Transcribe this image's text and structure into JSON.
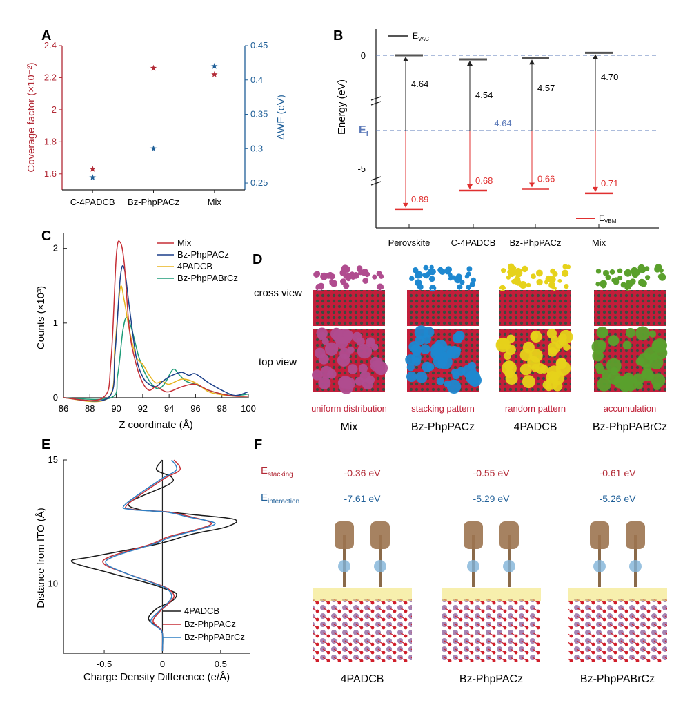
{
  "chart_data": [
    {
      "panel": "A",
      "type": "scatter",
      "categories": [
        "C-4PADCB",
        "Bz-PhpPACz",
        "Mix"
      ],
      "ylabel_left": "Coverage factor (×10⁻²)",
      "ylabel_right": "ΔWF (eV)",
      "ylim_left": [
        1.5,
        2.4
      ],
      "ylim_right": [
        0.24,
        0.45
      ],
      "yticks_left": [
        "1.6",
        "1.8",
        "2",
        "2.2",
        "2.4"
      ],
      "yticks_right": [
        "0.25",
        "0.3",
        "0.35",
        "0.4",
        "0.45"
      ],
      "series": [
        {
          "axis": "left",
          "color": "#b22a36",
          "values": [
            1.63,
            2.26,
            2.22
          ]
        },
        {
          "axis": "right",
          "color": "#1f5f98",
          "values": [
            0.258,
            0.3,
            0.42
          ]
        }
      ]
    },
    {
      "panel": "B",
      "type": "bar",
      "categories": [
        "Perovskite",
        "C-4PADCB",
        "Bz-PhpPACz",
        "Mix"
      ],
      "ylabel": "Energy (eV)",
      "yticks": [
        "0",
        "-5"
      ],
      "ef_label": "E",
      "ef_sub": "f",
      "ef_value": "-4.64",
      "legend": [
        {
          "label": "E",
          "sub": "VAC",
          "color": "#555555"
        },
        {
          "label": "E",
          "sub": "VBM",
          "color": "#e03030"
        }
      ],
      "vac_levels": [
        0,
        -0.1,
        -0.07,
        0.06
      ],
      "wf_labels": [
        "4.64",
        "4.54",
        "4.57",
        "4.70"
      ],
      "vbm_gap_labels": [
        "0.89",
        "0.68",
        "0.66",
        "0.71"
      ],
      "vbm_levels": [
        -5.53,
        -5.32,
        -5.3,
        -5.35
      ]
    },
    {
      "panel": "C",
      "type": "line",
      "xlabel": "Z coordinate (Å)",
      "ylabel": "Counts (×10³)",
      "xlim": [
        86,
        100
      ],
      "ylim": [
        0,
        2.2
      ],
      "xticks": [
        "86",
        "88",
        "90",
        "92",
        "94",
        "96",
        "98",
        "100"
      ],
      "yticks": [
        "0",
        "1",
        "2"
      ],
      "legend_labels": [
        "Mix",
        "Bz-PhpPACz",
        "4PADCB",
        "Bz-PhpPABrCz"
      ],
      "series": [
        {
          "color": "#c62f36",
          "x": [
            86,
            89,
            89.6,
            90,
            90.3,
            90.6,
            91,
            91.5,
            92,
            92.5,
            93,
            93.5,
            94,
            95,
            96,
            97,
            98,
            99,
            100
          ],
          "y": [
            0,
            0,
            0.5,
            1.9,
            2.08,
            1.8,
            0.9,
            0.45,
            0.2,
            0.1,
            0.15,
            0.1,
            0.08,
            0.15,
            0.18,
            0.1,
            0.05,
            0.02,
            0.02
          ]
        },
        {
          "color": "#1b3f8a",
          "x": [
            86,
            89.4,
            89.9,
            90.3,
            90.6,
            91,
            91.5,
            92,
            92.5,
            93,
            93.5,
            94,
            94.5,
            95,
            95.5,
            96,
            97,
            98,
            99,
            100
          ],
          "y": [
            0,
            0,
            0.6,
            1.6,
            1.73,
            1.2,
            0.55,
            0.28,
            0.18,
            0.15,
            0.22,
            0.28,
            0.32,
            0.34,
            0.3,
            0.32,
            0.2,
            0.1,
            0.03,
            0.08
          ]
        },
        {
          "color": "#e8b41e",
          "x": [
            86,
            89.4,
            89.9,
            90.3,
            90.6,
            91,
            91.5,
            92,
            92.5,
            93,
            93.5,
            94,
            95,
            96,
            97,
            98,
            99,
            100
          ],
          "y": [
            0,
            0,
            0.7,
            1.47,
            1.3,
            0.9,
            0.55,
            0.45,
            0.3,
            0.2,
            0.22,
            0.18,
            0.25,
            0.2,
            0.08,
            0.04,
            0.02,
            0.02
          ]
        },
        {
          "color": "#1e9c78",
          "x": [
            86,
            89.6,
            90.1,
            90.5,
            90.8,
            91.2,
            91.7,
            92.2,
            92.7,
            93.2,
            93.7,
            94.3,
            94.8,
            95.3,
            96,
            97,
            98,
            99,
            100
          ],
          "y": [
            0,
            0,
            0.3,
            0.9,
            1.08,
            0.9,
            0.55,
            0.32,
            0.18,
            0.12,
            0.2,
            0.38,
            0.3,
            0.22,
            0.18,
            0.1,
            0.05,
            0.03,
            0.05
          ]
        }
      ]
    },
    {
      "panel": "E",
      "type": "line",
      "xlabel": "Charge Density Difference (e/Å)",
      "ylabel": "Distance from ITO (Å)",
      "xlim": [
        -0.85,
        0.75
      ],
      "ylim": [
        7.2,
        15
      ],
      "xticks": [
        "-0.5",
        "0",
        "0.5"
      ],
      "yticks": [
        "10",
        "15"
      ],
      "legend_labels": [
        "4PADCB",
        "Bz-PhpPACz",
        "Bz-PhpPABrCz"
      ],
      "series": [
        {
          "color": "#1a1a1a",
          "x": [
            0.0,
            -0.05,
            0.08,
            0.05,
            -0.28,
            -0.2,
            0.05,
            0.25,
            0.62,
            0.55,
            0.25,
            -0.05,
            -0.6,
            -0.78,
            -0.5,
            -0.1,
            0.02,
            0.12,
            0.08,
            -0.05,
            -0.12,
            -0.05,
            0.0,
            0.0
          ],
          "y": [
            15,
            14.6,
            14.3,
            14.0,
            13.3,
            13.0,
            12.9,
            12.8,
            12.6,
            12.3,
            12.0,
            11.6,
            11.1,
            10.9,
            10.5,
            10.0,
            9.8,
            9.6,
            9.3,
            9.0,
            8.6,
            8.3,
            8.0,
            7.3
          ]
        },
        {
          "color": "#c62f36",
          "x": [
            0.1,
            0.15,
            0.0,
            -0.3,
            -0.25,
            0.05,
            0.25,
            0.42,
            0.3,
            0.05,
            -0.1,
            -0.45,
            -0.5,
            -0.3,
            -0.05,
            0.05,
            0.1,
            0.05,
            -0.02,
            -0.08,
            -0.02,
            0.0,
            0.0
          ],
          "y": [
            15,
            14.6,
            14.2,
            13.2,
            13.0,
            12.9,
            12.7,
            12.45,
            12.2,
            11.9,
            11.6,
            11.1,
            10.8,
            10.4,
            10.0,
            9.8,
            9.5,
            9.2,
            8.9,
            8.5,
            8.2,
            8.0,
            7.3
          ]
        },
        {
          "color": "#2f7fc4",
          "x": [
            0.08,
            0.12,
            -0.02,
            -0.32,
            -0.27,
            0.03,
            0.22,
            0.45,
            0.32,
            0.08,
            -0.08,
            -0.42,
            -0.48,
            -0.3,
            -0.06,
            0.04,
            0.08,
            0.04,
            -0.03,
            -0.1,
            -0.03,
            0.0,
            0.0
          ],
          "y": [
            15,
            14.6,
            14.2,
            13.2,
            13.0,
            12.9,
            12.7,
            12.45,
            12.2,
            11.9,
            11.6,
            11.1,
            10.8,
            10.4,
            10.0,
            9.8,
            9.5,
            9.2,
            8.9,
            8.5,
            8.2,
            8.0,
            7.3
          ]
        }
      ]
    }
  ],
  "panels": {
    "labels": [
      "A",
      "B",
      "C",
      "D",
      "E",
      "F"
    ],
    "D": {
      "row_labels": [
        "cross view",
        "top view"
      ],
      "captions_red": [
        "uniform distribution",
        "stacking pattern",
        "random pattern",
        "accumulation"
      ],
      "names": [
        "Mix",
        "Bz-PhpPACz",
        "4PADCB",
        "Bz-PhpPABrCz"
      ],
      "colors": [
        "#b04c8f",
        "#1e88d0",
        "#e6d21a",
        "#5aa02c"
      ]
    },
    "F": {
      "row1_label": "E",
      "row1_sub": "stacking",
      "row2_label": "E",
      "row2_sub": "interaction",
      "stacking_values": [
        "-0.36 eV",
        "-0.55 eV",
        "-0.61 eV"
      ],
      "interaction_values": [
        "-7.61 eV",
        "-5.29 eV",
        "-5.26 eV"
      ],
      "names": [
        "4PADCB",
        "Bz-PhpPACz",
        "Bz-PhpPABrCz"
      ]
    }
  }
}
